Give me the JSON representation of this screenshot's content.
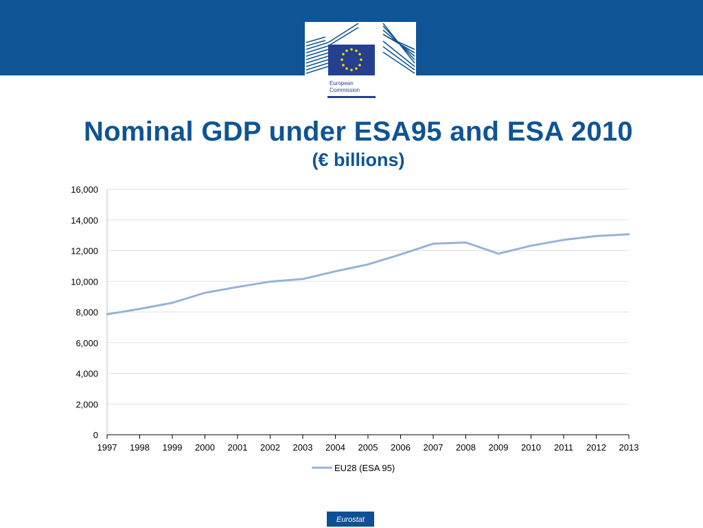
{
  "header": {
    "logo_line1": "European",
    "logo_line2": "Commission",
    "brand_color": "#0f5494"
  },
  "chart_data": {
    "type": "line",
    "title": "Nominal GDP under ESA95 and ESA 2010",
    "subtitle": "(€ billions)",
    "xlabel": "",
    "ylabel": "",
    "x": [
      "1997",
      "1998",
      "1999",
      "2000",
      "2001",
      "2002",
      "2003",
      "2004",
      "2005",
      "2006",
      "2007",
      "2008",
      "2009",
      "2010",
      "2011",
      "2012",
      "2013"
    ],
    "series": [
      {
        "name": "EU28 (ESA 95)",
        "color": "#95b3d7",
        "values": [
          7850,
          8200,
          8600,
          9250,
          9630,
          9980,
          10150,
          10650,
          11100,
          11750,
          12450,
          12530,
          11800,
          12320,
          12700,
          12950,
          13070
        ]
      }
    ],
    "ylim": [
      0,
      16000
    ],
    "yticks": [
      0,
      2000,
      4000,
      6000,
      8000,
      10000,
      12000,
      14000,
      16000
    ],
    "ytick_labels": [
      "0",
      "2,000",
      "4,000",
      "6,000",
      "8,000",
      "10,000",
      "12,000",
      "14,000",
      "16,000"
    ],
    "grid": true,
    "legend_position": "bottom"
  },
  "footer": {
    "badge": "Eurostat"
  }
}
